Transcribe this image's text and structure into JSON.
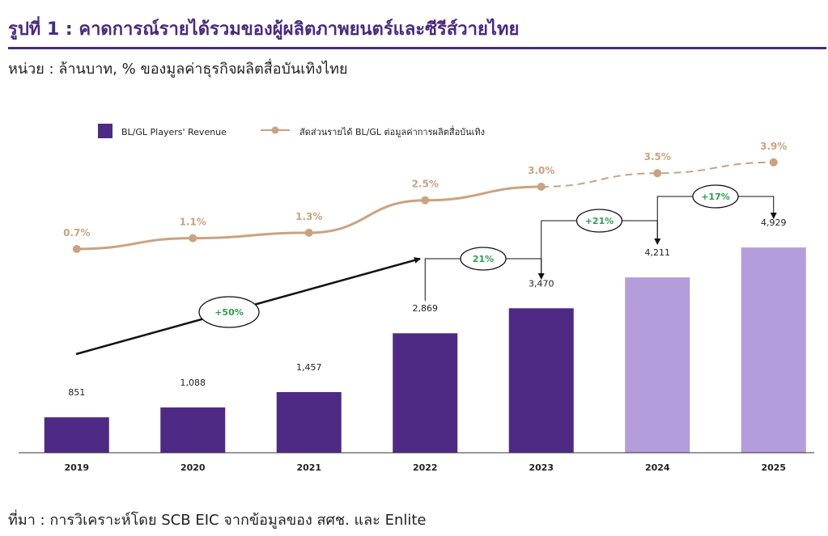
{
  "header": {
    "title": "รูปที่ 1 : คาดการณ์รายได้รวมของผู้ผลิตภาพยนตร์และซีรีส์วายไทย",
    "unit": "หน่วย : ล้านบาท, % ของมูลค่าธุรกิจผลิตสื่อบันเทิงไทย"
  },
  "footer": {
    "source": "ที่มา : การวิเคราะห์โดย SCB EIC จากข้อมูลของ สศช. และ Enlite"
  },
  "colors": {
    "bar_actual": "#4e2a84",
    "bar_forecast": "#b39ddb",
    "line": "#c9a380",
    "growth_text": "#2e9e4f",
    "title": "#4a2a7f"
  },
  "chart_data": {
    "type": "bar",
    "categories": [
      "2019",
      "2020",
      "2021",
      "2022",
      "2023",
      "2024",
      "2025"
    ],
    "series": [
      {
        "name": "BL/GL Players' Revenue",
        "values": [
          851,
          1088,
          1457,
          2869,
          3470,
          4211,
          4929
        ],
        "labels": [
          "851",
          "1,088",
          "1,457",
          "2,869",
          "3,470",
          "4,211",
          "4,929"
        ],
        "forecast_from_index": 5
      },
      {
        "name": "สัดส่วนรายได้ BL/GL ต่อมูลค่าการผลิตสื่อบันเทิง",
        "type": "line",
        "values": [
          0.7,
          1.1,
          1.3,
          2.5,
          3.0,
          3.5,
          3.9
        ],
        "labels": [
          "0.7%",
          "1.1%",
          "1.3%",
          "2.5%",
          "3.0%",
          "3.5%",
          "3.9%"
        ],
        "dashed_from_index": 4
      }
    ],
    "annotations": [
      {
        "text": "+50%",
        "from": "2019",
        "to": "2022"
      },
      {
        "text": "21%",
        "from": "2022",
        "to": "2023"
      },
      {
        "text": "+21%",
        "from": "2023",
        "to": "2024"
      },
      {
        "text": "+17%",
        "from": "2024",
        "to": "2025"
      }
    ],
    "legend": "top-left",
    "grid": false
  }
}
